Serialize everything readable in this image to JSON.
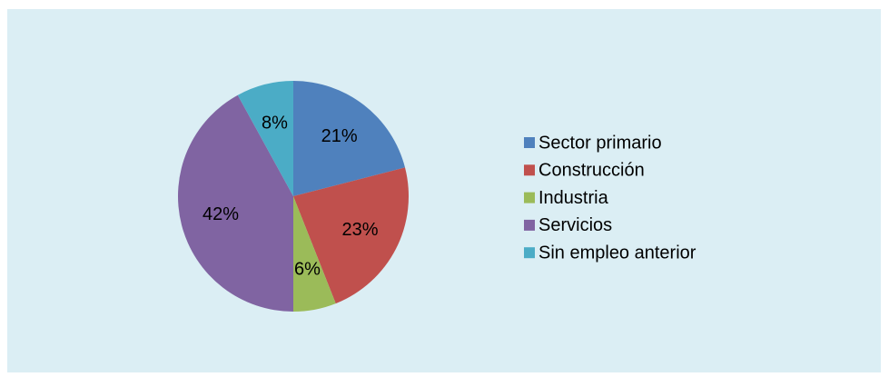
{
  "chart_data": {
    "type": "pie",
    "categories": [
      "Sector primario",
      "Construcción",
      "Industria",
      "Servicios",
      "Sin empleo anterior"
    ],
    "values": [
      21,
      23,
      6,
      42,
      8
    ],
    "value_labels": [
      "21%",
      "23%",
      "6%",
      "42%",
      "8%"
    ],
    "colors": [
      "#4f81bd",
      "#c0504d",
      "#9bbb59",
      "#8064a2",
      "#4bacc6"
    ],
    "legend": "right"
  }
}
